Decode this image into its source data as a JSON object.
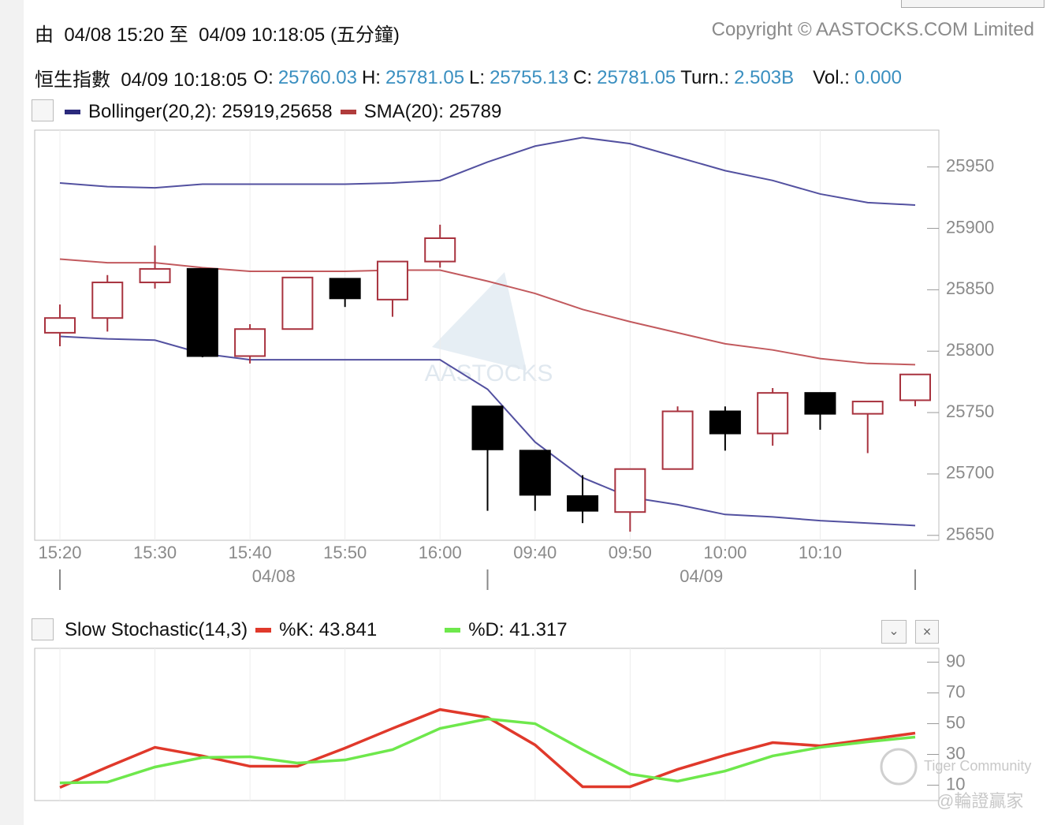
{
  "header": {
    "range": "由  04/08 15:20 至  04/09 10:18:05 (五分鐘)",
    "copyright": "Copyright © AASTOCKS.COM Limited",
    "quote_label": "恒生指數  04/09 10:18:05",
    "quote_fields": [
      {
        "name": "O:",
        "value": "25760.03"
      },
      {
        "name": "H:",
        "value": "25781.05"
      },
      {
        "name": "L:",
        "value": "25755.13"
      },
      {
        "name": "C:",
        "value": "25781.05"
      },
      {
        "name": "Turn.:",
        "value": "2.503B"
      },
      {
        "name": "Vol.:",
        "value": "0.000"
      }
    ]
  },
  "chart_data": [
    {
      "type": "candlestick",
      "legend": [
        {
          "name": "Bollinger(20,2): 25919,25658",
          "color": "#2b2a7c"
        },
        {
          "name": "SMA(20): 25789",
          "color": "#b03c3c"
        }
      ],
      "categories": [
        "15:20",
        null,
        "15:30",
        null,
        "15:40",
        null,
        "15:50",
        null,
        "16:00",
        null,
        "09:40",
        null,
        "09:50",
        null,
        "10:00",
        null,
        "10:10",
        null,
        null
      ],
      "dates": [
        "04/08",
        "04/09"
      ],
      "open": [
        25815,
        25827,
        25856,
        25867,
        25796,
        25818,
        25859,
        25842,
        25873,
        25755,
        25719,
        25682,
        25669,
        25704,
        25751,
        25733,
        25766,
        25749,
        25760.03
      ],
      "high": [
        25838,
        25862,
        25886,
        25867,
        25822,
        25860,
        25859,
        25873,
        25903,
        25755,
        25719,
        25699,
        25704,
        25755,
        25755,
        25770,
        25766,
        25759,
        25781.05
      ],
      "low": [
        25804,
        25816,
        25851,
        25795,
        25790,
        25818,
        25836,
        25828,
        25868,
        25670,
        25670,
        25660,
        25653,
        25704,
        25719,
        25723,
        25736,
        25717,
        25755.13
      ],
      "close": [
        25827,
        25856,
        25867,
        25796,
        25818,
        25860,
        25843,
        25873,
        25892,
        25720,
        25683,
        25670,
        25704,
        25751,
        25733,
        25766,
        25749,
        25759,
        25781.05
      ],
      "up_color": "#a8323e",
      "down_color": "#000000",
      "lines": [
        {
          "color": "#5351a0",
          "values": [
            25937,
            25934,
            25933,
            25936,
            25936,
            25936,
            25936,
            25937,
            25939,
            25954,
            25967,
            25974,
            25969,
            25958,
            25947,
            25939,
            25928,
            25921,
            25919
          ]
        },
        {
          "color": "#5351a0",
          "values": [
            25812,
            25810,
            25809,
            25798,
            25793,
            25793,
            25793,
            25793,
            25793,
            25769,
            25726,
            25697,
            25681,
            25675,
            25667,
            25665,
            25662,
            25660,
            25658
          ]
        },
        {
          "color": "#c25a5e",
          "values": [
            25875,
            25872,
            25872,
            25868,
            25865,
            25865,
            25865,
            25866,
            25866,
            25857,
            25847,
            25834,
            25824,
            25815,
            25806,
            25801,
            25794,
            25790,
            25789
          ]
        }
      ],
      "ylim": [
        25646,
        25980
      ],
      "yticks": [
        25650,
        25700,
        25750,
        25800,
        25850,
        25900,
        25950
      ],
      "grid": "x"
    },
    {
      "type": "line",
      "title": "Slow Stochastic(14,3)",
      "series": [
        {
          "name": "%K: 43.841",
          "color": "#e0392b",
          "values": [
            8.5,
            21.8,
            34.6,
            29,
            22.3,
            22.3,
            34.1,
            46.9,
            59.2,
            54.1,
            36.2,
            9,
            9,
            20.3,
            29.5,
            37.7,
            35.6,
            39.7,
            43.841
          ]
        },
        {
          "name": "%D: 41.317",
          "color": "#6ee84c",
          "values": [
            11.5,
            12,
            21.8,
            28,
            28.5,
            24.4,
            26.4,
            33.1,
            46.9,
            53.1,
            50,
            33.1,
            17.2,
            12.6,
            19.2,
            29,
            34.6,
            38.2,
            41.317
          ]
        }
      ],
      "ylim": [
        0,
        99
      ],
      "yticks": [
        10,
        30,
        50,
        70,
        90
      ],
      "grid": "x"
    }
  ],
  "watermarks": [
    "AASTOCKS",
    "Tiger Community",
    "@輪證贏家"
  ]
}
